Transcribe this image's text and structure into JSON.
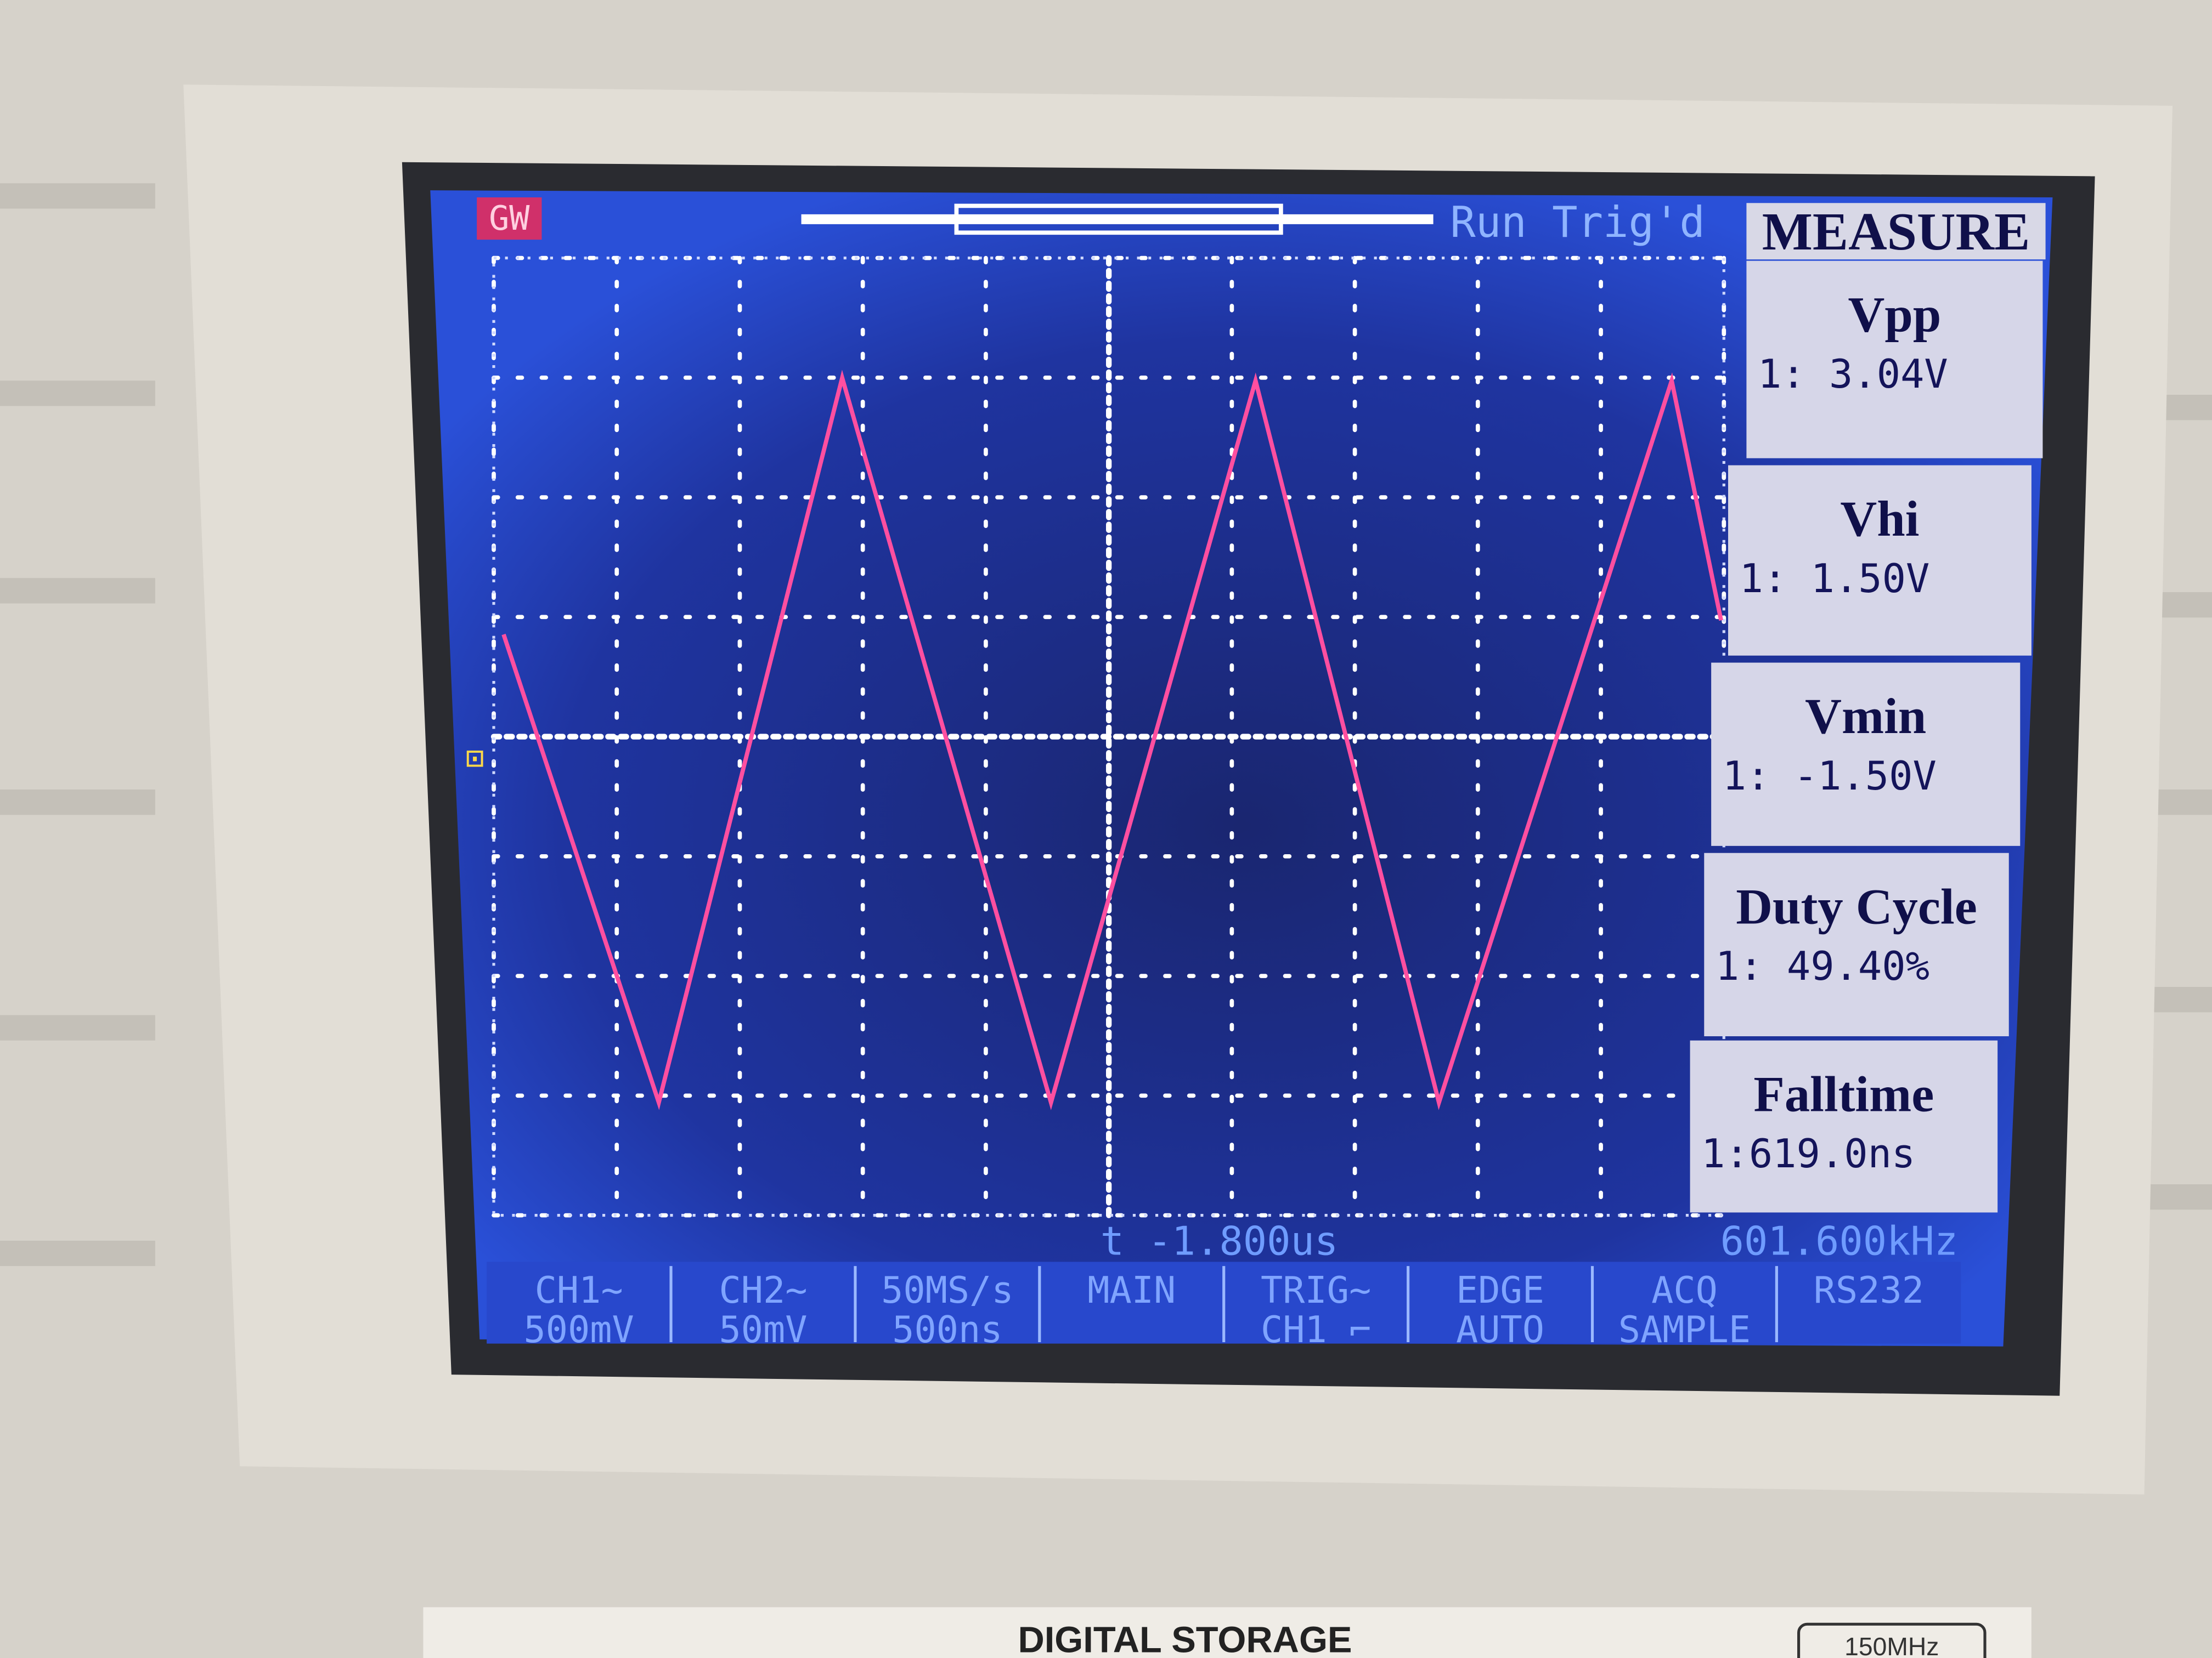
{
  "header": {
    "logo": "GW",
    "status": "Run Trig'd",
    "panel_title": "MEASURE"
  },
  "measurements": [
    {
      "name": "Vpp",
      "value": "1: 3.04V"
    },
    {
      "name": "Vhi",
      "value": "1: 1.50V"
    },
    {
      "name": "Vmin",
      "value": "1: -1.50V"
    },
    {
      "name": "Duty Cycle",
      "value": "1: 49.40%"
    },
    {
      "name": "Falltime",
      "value": "1:619.0ns"
    }
  ],
  "footer": {
    "time_offset": "t -1.800us",
    "frequency": "601.600kHz"
  },
  "menu": [
    {
      "lines": [
        "CH1∼",
        "500mV"
      ]
    },
    {
      "lines": [
        "CH2∼",
        "50mV"
      ]
    },
    {
      "lines": [
        "50MS/s",
        "500ns"
      ]
    },
    {
      "lines": [
        "MAIN"
      ]
    },
    {
      "lines": [
        "TRIG∼",
        "CH1 ⌐"
      ]
    },
    {
      "lines": [
        "EDGE",
        "AUTO"
      ]
    },
    {
      "lines": [
        "ACQ",
        "SAMPLE"
      ]
    },
    {
      "lines": [
        "RS232"
      ]
    }
  ],
  "bezel": {
    "label": "DIGITAL STORAGE",
    "bandwidth": "150MHz"
  }
}
